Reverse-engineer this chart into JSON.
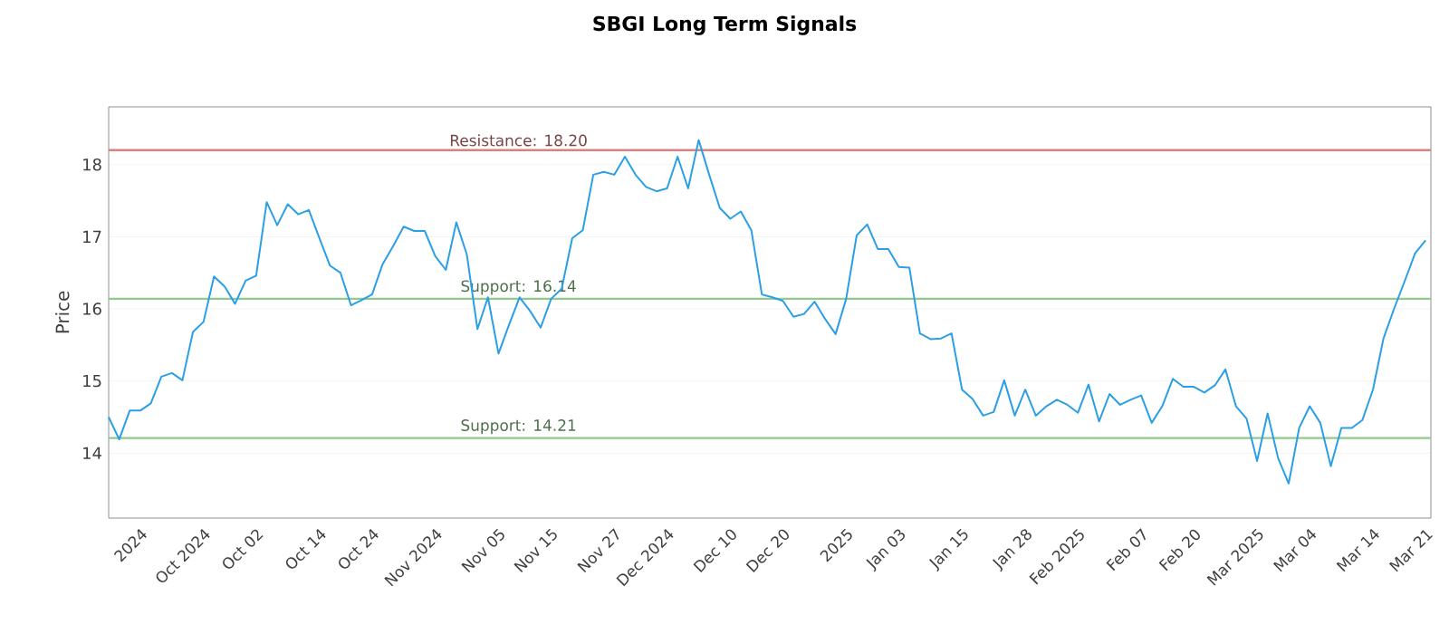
{
  "chart_data": {
    "type": "line",
    "title": "SBGI Long Term Signals",
    "ylabel": "Price",
    "categories": [
      null,
      null,
      null,
      "2024",
      null,
      null,
      null,
      null,
      null,
      "Oct 2024",
      null,
      null,
      null,
      null,
      "Oct 02",
      null,
      null,
      null,
      null,
      null,
      "Oct 14",
      null,
      null,
      null,
      null,
      "Oct 24",
      null,
      null,
      null,
      null,
      null,
      "Nov 2024",
      null,
      null,
      null,
      null,
      null,
      "Nov 05",
      null,
      null,
      null,
      null,
      "Nov 15",
      null,
      null,
      null,
      null,
      null,
      "Nov 27",
      null,
      null,
      null,
      null,
      "Dec 2024",
      null,
      null,
      null,
      null,
      null,
      "Dec 10",
      null,
      null,
      null,
      null,
      "Dec 20",
      null,
      null,
      null,
      null,
      null,
      "2025",
      null,
      null,
      null,
      null,
      "Jan 03",
      null,
      null,
      null,
      null,
      null,
      "Jan 15",
      null,
      null,
      null,
      null,
      null,
      "Jan 28",
      null,
      null,
      null,
      null,
      "Feb 2025",
      null,
      null,
      null,
      null,
      null,
      "Feb 07",
      null,
      null,
      null,
      null,
      "Feb 20",
      null,
      null,
      null,
      null,
      null,
      "Mar 2025",
      null,
      null,
      null,
      null,
      "Mar 04",
      null,
      null,
      null,
      null,
      null,
      "Mar 14",
      null,
      null,
      null,
      null,
      "Mar 21"
    ],
    "series": [
      {
        "color": "#2b9fe6",
        "values": [
          14.5,
          14.19,
          14.59,
          14.59,
          14.69,
          15.06,
          15.11,
          15.01,
          15.68,
          15.82,
          16.45,
          16.31,
          16.07,
          16.39,
          16.46,
          17.48,
          17.16,
          17.45,
          17.31,
          17.37,
          16.98,
          16.6,
          16.5,
          16.05,
          16.12,
          16.2,
          16.62,
          16.87,
          17.14,
          17.08,
          17.08,
          16.73,
          16.54,
          17.2,
          16.75,
          15.72,
          16.16,
          15.38,
          15.78,
          16.16,
          15.97,
          15.74,
          16.14,
          16.28,
          16.98,
          17.09,
          17.86,
          17.9,
          17.86,
          18.11,
          17.86,
          17.69,
          17.63,
          17.67,
          18.11,
          17.67,
          18.34,
          17.86,
          17.4,
          17.25,
          17.35,
          17.09,
          16.2,
          16.16,
          16.11,
          15.89,
          15.93,
          16.1,
          15.86,
          15.65,
          16.14,
          17.02,
          17.17,
          16.83,
          16.83,
          16.58,
          16.57,
          15.66,
          15.58,
          15.59,
          15.66,
          14.88,
          14.75,
          14.52,
          14.57,
          15.01,
          14.52,
          14.88,
          14.52,
          14.65,
          14.74,
          14.67,
          14.56,
          14.95,
          14.44,
          14.82,
          14.67,
          14.74,
          14.8,
          14.42,
          14.65,
          15.03,
          14.92,
          14.92,
          14.84,
          14.94,
          15.16,
          14.65,
          14.48,
          13.89,
          14.55,
          13.93,
          13.58,
          14.35,
          14.65,
          14.42,
          13.82,
          14.35,
          14.35,
          14.46,
          14.88,
          15.59,
          16.0,
          16.38,
          16.77,
          16.95
        ]
      }
    ],
    "ylim": [
      13.1,
      18.8
    ],
    "yticks": [
      14,
      15,
      16,
      17,
      18
    ],
    "grid": "y",
    "marker": "none",
    "line_style": "solid",
    "ref_lines": [
      {
        "axis": "y",
        "value": 18.2,
        "label": "Resistance: 18.20",
        "color": "#d9827f"
      },
      {
        "axis": "y",
        "value": 16.14,
        "label": "Support: 16.14",
        "color": "#8fcc8a"
      },
      {
        "axis": "y",
        "value": 14.21,
        "label": "Support: 14.21",
        "color": "#8fcc8a"
      }
    ]
  }
}
